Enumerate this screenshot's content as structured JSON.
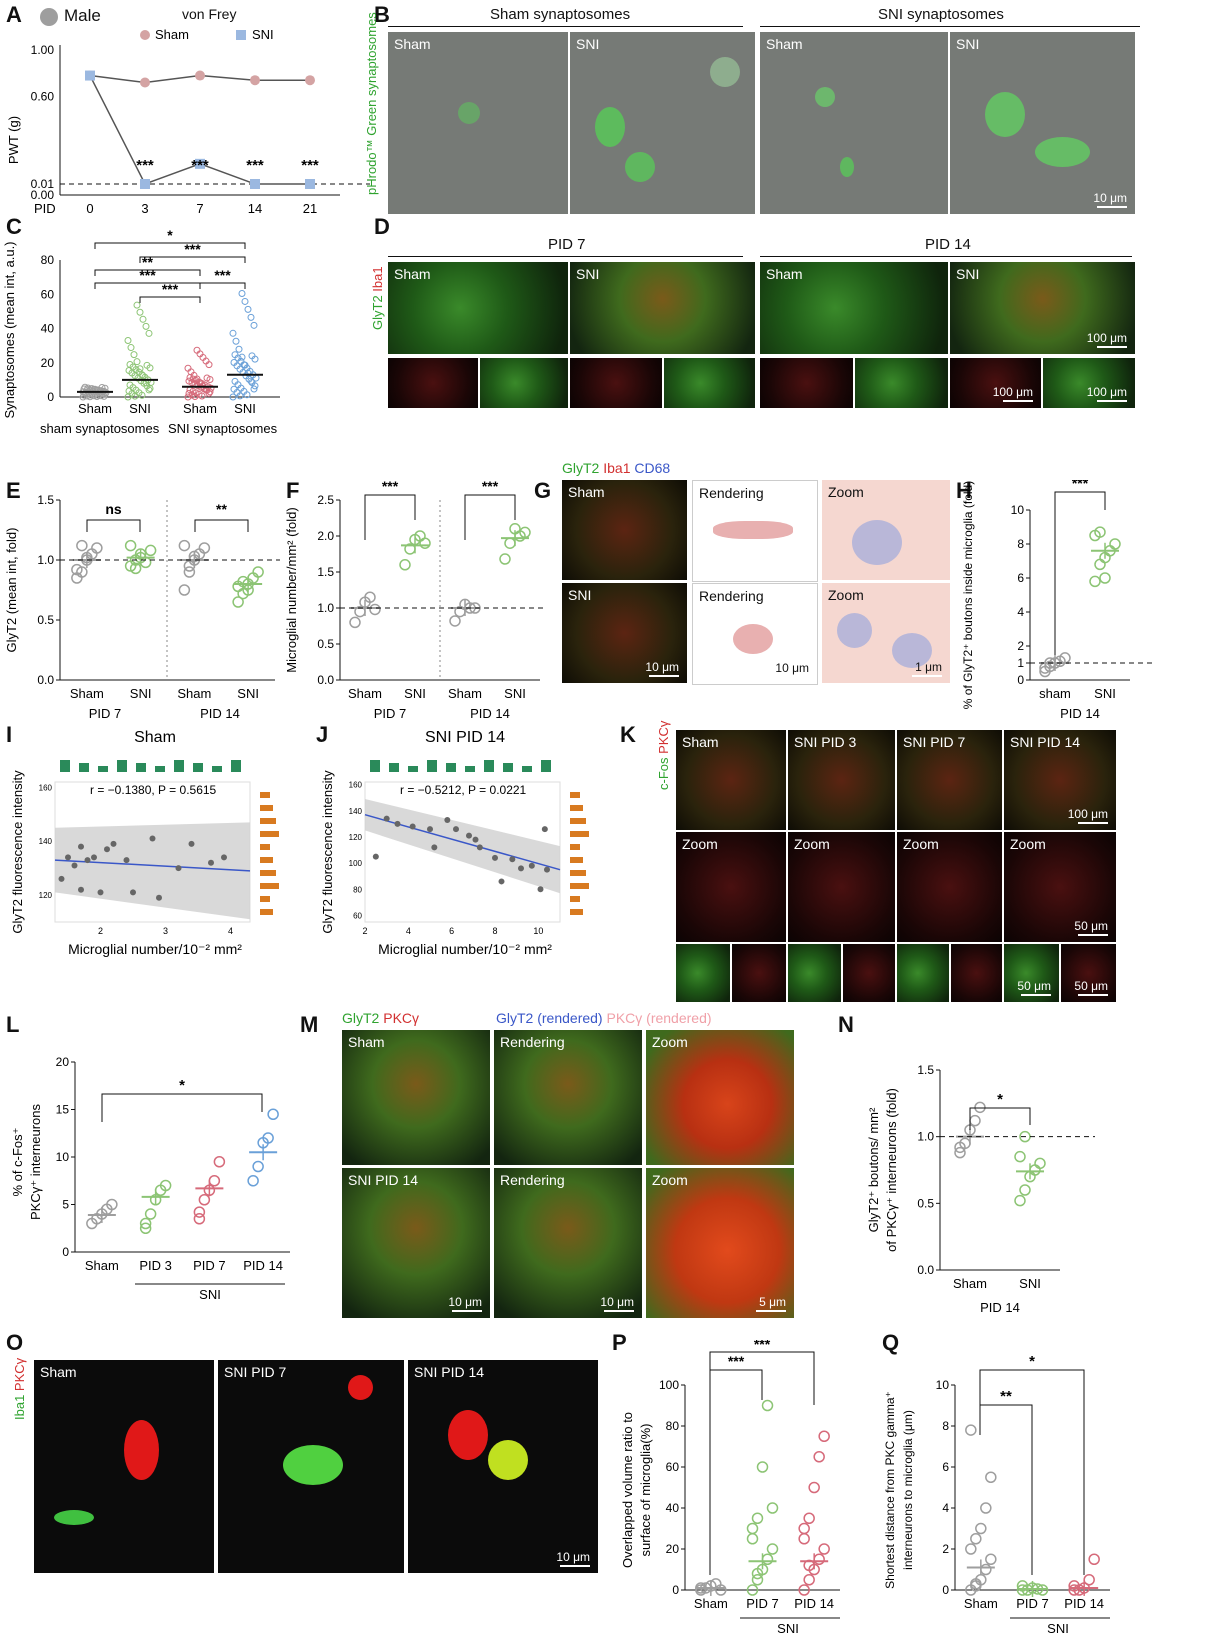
{
  "panels": {
    "A": {
      "label": "A",
      "legend_sex": "Male",
      "title": "von Frey",
      "legend_sham": "Sham",
      "legend_sni": "SNI",
      "ylabel": "PWT (g)",
      "xlabel": "PID",
      "yticks": [
        "1.00",
        "0.60",
        "0.01",
        "0.00"
      ],
      "xticks": [
        "0",
        "3",
        "7",
        "14",
        "21"
      ],
      "sig": [
        "***",
        "***",
        "***",
        "***"
      ]
    },
    "B": {
      "label": "B",
      "group1": "Sham synaptosomes",
      "group2": "SNI synaptosomes",
      "ylabel": "pHrodo™ Green synaptosomes",
      "tiles": [
        "Sham",
        "SNI",
        "Sham",
        "SNI"
      ],
      "scale": "10 μm"
    },
    "C": {
      "label": "C",
      "ylabel": "Synaptosomes (mean int, a.u.)",
      "yticks": [
        "80",
        "60",
        "40",
        "20",
        "0"
      ],
      "xticks": [
        "Sham",
        "SNI",
        "Sham",
        "SNI"
      ],
      "groups": [
        "sham synaptosomes",
        "SNI synaptosomes"
      ],
      "sig": [
        "*",
        "***",
        "**",
        "***",
        "***",
        "***"
      ]
    },
    "D": {
      "label": "D",
      "ylabel_a": "GlyT2",
      "ylabel_b": "Iba1",
      "group1": "PID 7",
      "group2": "PID 14",
      "tiles": [
        "Sham",
        "SNI",
        "Sham",
        "SNI"
      ],
      "scale": "100 μm"
    },
    "E": {
      "label": "E",
      "ylabel": "GlyT2 (mean int, fold)",
      "yticks": [
        "1.5",
        "1.0",
        "0.5",
        "0.0"
      ],
      "xticks": [
        "Sham",
        "SNI",
        "Sham",
        "SNI"
      ],
      "groups": [
        "PID 7",
        "PID 14"
      ],
      "sig": [
        "ns",
        "**"
      ]
    },
    "F": {
      "label": "F",
      "ylabel": "Microglial number/mm² (fold)",
      "yticks": [
        "2.5",
        "2.0",
        "1.5",
        "1.0",
        "0.5",
        "0.0"
      ],
      "xticks": [
        "Sham",
        "SNI",
        "Sham",
        "SNI"
      ],
      "groups": [
        "PID 7",
        "PID 14"
      ],
      "sig": [
        "***",
        "***"
      ]
    },
    "G": {
      "label": "G",
      "title_a": "GlyT2",
      "title_b": "Iba1",
      "title_c": "CD68",
      "row1": [
        "Sham",
        "Rendering",
        "Zoom"
      ],
      "row2": [
        "SNI",
        "Rendering",
        "Zoom"
      ],
      "scales": [
        "10 μm",
        "10 μm",
        "1 μm"
      ]
    },
    "H": {
      "label": "H",
      "ylabel": "% of GlyT2⁺ boutons inside microglia (fold)",
      "yticks": [
        "10",
        "8",
        "6",
        "4",
        "2",
        "1",
        "0"
      ],
      "xticks": [
        "sham",
        "SNI"
      ],
      "group": "PID 14",
      "sig": "***"
    },
    "I": {
      "label": "I",
      "title": "Sham",
      "stat": "r = −0.1380, P = 0.5615",
      "ylabel": "GlyT2 fluorescence intensity",
      "xlabel": "Microglial number/10⁻² mm²",
      "yticks": [
        "160",
        "140",
        "120"
      ],
      "xticks": [
        "2",
        "3",
        "4"
      ]
    },
    "J": {
      "label": "J",
      "title": "SNI PID 14",
      "stat": "r = −0.5212, P = 0.0221",
      "ylabel": "GlyT2 fluorescence intensity",
      "xlabel": "Microglial number/10⁻² mm²",
      "yticks": [
        "160",
        "140",
        "120",
        "100",
        "80",
        "60"
      ],
      "xticks": [
        "2",
        "4",
        "6",
        "8",
        "10"
      ]
    },
    "K": {
      "label": "K",
      "ylabel_a": "c-Fos",
      "ylabel_b": "PKCγ",
      "tiles": [
        "Sham",
        "SNI PID 3",
        "SNI PID 7",
        "SNI PID 14"
      ],
      "zoom": "Zoom",
      "scale1": "100 μm",
      "scale2": "50 μm"
    },
    "L": {
      "label": "L",
      "ylabel_a": "% of c-Fos⁺",
      "ylabel_b": "PKCγ⁺ interneurons",
      "yticks": [
        "20",
        "15",
        "10",
        "5",
        "0"
      ],
      "xticks": [
        "Sham",
        "PID 3",
        "PID 7",
        "PID 14"
      ],
      "group": "SNI",
      "sig": "*"
    },
    "M": {
      "label": "M",
      "title_a": "GlyT2",
      "title_b": "PKCγ",
      "title_c": "GlyT2 (rendered)",
      "title_d": "PKCγ (rendered)",
      "row1": [
        "Sham",
        "Rendering",
        "Zoom"
      ],
      "row2": [
        "SNI PID 14",
        "Rendering",
        "Zoom"
      ],
      "scales": [
        "10 μm",
        "10 μm",
        "5 μm"
      ]
    },
    "N": {
      "label": "N",
      "ylabel_a": "GlyT2⁺ boutons/ mm²",
      "ylabel_b": "of PKCγ⁺ interneurons (fold)",
      "yticks": [
        "1.5",
        "1.0",
        "0.5",
        "0.0"
      ],
      "xticks": [
        "Sham",
        "SNI"
      ],
      "group": "PID 14",
      "sig": "*"
    },
    "O": {
      "label": "O",
      "ylabel_a": "Iba1",
      "ylabel_b": "PKCγ",
      "tiles": [
        "Sham",
        "SNI PID 7",
        "SNI PID 14"
      ],
      "scale": "10 μm"
    },
    "P": {
      "label": "P",
      "ylabel_a": "Overlapped volume ratio to",
      "ylabel_b": "surface of microglia(%)",
      "yticks": [
        "100",
        "80",
        "60",
        "40",
        "20",
        "0"
      ],
      "xticks": [
        "Sham",
        "PID 7",
        "PID 14"
      ],
      "group": "SNI",
      "sig": [
        "***",
        "***"
      ]
    },
    "Q": {
      "label": "Q",
      "ylabel_a": "Shortest distance from PKC gamma⁺",
      "ylabel_b": "interneurons to microglia (μm)",
      "yticks": [
        "10",
        "8",
        "6",
        "4",
        "2",
        "0"
      ],
      "xticks": [
        "Sham",
        "PID 7",
        "PID 14"
      ],
      "group": "SNI",
      "sig": [
        "**",
        "*"
      ]
    }
  },
  "chart_data": [
    {
      "id": "A",
      "type": "line",
      "x": [
        0,
        3,
        7,
        14,
        21
      ],
      "series": [
        {
          "name": "Sham",
          "values": [
            0.78,
            0.72,
            0.78,
            0.74,
            0.74
          ],
          "color": "#d4a3a3"
        },
        {
          "name": "SNI",
          "values": [
            0.78,
            0.01,
            0.02,
            0.01,
            0.01
          ],
          "color": "#9bb8e0"
        }
      ]
    },
    {
      "id": "C",
      "type": "scatter",
      "categories": [
        "Sham",
        "SNI",
        "Sham",
        "SNI"
      ],
      "means": [
        3,
        10,
        6,
        13
      ],
      "ylim": [
        0,
        80
      ],
      "max": [
        5,
        55,
        28,
        62
      ],
      "colors": [
        "#9e9e9e",
        "#8cc474",
        "#d66a7a",
        "#6aa0d8"
      ]
    },
    {
      "id": "E",
      "type": "scatter",
      "categories": [
        "Sham",
        "SNI",
        "Sham",
        "SNI"
      ],
      "means": [
        1.0,
        1.02,
        1.0,
        0.8
      ],
      "ylim": [
        0,
        1.5
      ],
      "points": [
        [
          0.85,
          0.9,
          1.0,
          1.05,
          1.1,
          0.92,
          1.12,
          1.02
        ],
        [
          0.95,
          1.0,
          1.05,
          0.98,
          1.08,
          1.12,
          0.93,
          1.02
        ],
        [
          0.75,
          0.9,
          1.0,
          1.05,
          1.1,
          1.12,
          0.95,
          1.03
        ],
        [
          0.65,
          0.72,
          0.8,
          0.85,
          0.9,
          0.78,
          0.82,
          0.75
        ]
      ]
    },
    {
      "id": "F",
      "type": "scatter",
      "categories": [
        "Sham",
        "SNI",
        "Sham",
        "SNI"
      ],
      "means": [
        1.0,
        1.87,
        1.0,
        1.97
      ],
      "ylim": [
        0,
        2.5
      ],
      "points": [
        [
          0.8,
          0.95,
          1.08,
          1.15,
          0.98
        ],
        [
          1.6,
          1.82,
          1.95,
          2.0,
          1.9
        ],
        [
          0.82,
          0.95,
          1.05,
          1.0,
          1.0
        ],
        [
          1.68,
          1.9,
          2.1,
          2.0,
          2.05
        ]
      ]
    },
    {
      "id": "H",
      "type": "scatter",
      "categories": [
        "sham",
        "SNI"
      ],
      "means": [
        1.0,
        7.6
      ],
      "ylim": [
        0,
        10
      ],
      "points": [
        [
          0.5,
          0.8,
          1.0,
          1.1,
          1.3,
          0.7,
          1.0
        ],
        [
          5.8,
          6.8,
          7.2,
          7.6,
          8.0,
          8.5,
          8.7,
          6.0
        ]
      ]
    },
    {
      "id": "I",
      "type": "scatter",
      "xlim": [
        1.3,
        4.3
      ],
      "ylim": [
        110,
        162
      ],
      "points": [
        [
          1.4,
          126
        ],
        [
          1.5,
          134
        ],
        [
          1.6,
          131
        ],
        [
          1.7,
          122
        ],
        [
          1.8,
          133
        ],
        [
          1.9,
          134
        ],
        [
          2.0,
          121
        ],
        [
          2.1,
          137
        ],
        [
          2.2,
          139
        ],
        [
          2.4,
          133
        ],
        [
          2.5,
          121
        ],
        [
          2.8,
          141
        ],
        [
          3.2,
          130
        ],
        [
          3.4,
          139
        ],
        [
          3.7,
          132
        ],
        [
          1.7,
          138
        ],
        [
          2.9,
          119
        ],
        [
          3.9,
          134
        ]
      ],
      "fit": [
        [
          1.3,
          133
        ],
        [
          4.3,
          129
        ]
      ]
    },
    {
      "id": "J",
      "type": "scatter",
      "xlim": [
        2,
        11
      ],
      "ylim": [
        55,
        162
      ],
      "points": [
        [
          2.5,
          105
        ],
        [
          3.0,
          134
        ],
        [
          3.5,
          130
        ],
        [
          4.2,
          128
        ],
        [
          5.0,
          126
        ],
        [
          5.2,
          112
        ],
        [
          5.8,
          133
        ],
        [
          6.2,
          126
        ],
        [
          6.8,
          121
        ],
        [
          7.1,
          118
        ],
        [
          7.3,
          112
        ],
        [
          8.0,
          104
        ],
        [
          8.3,
          86
        ],
        [
          8.8,
          103
        ],
        [
          9.2,
          96
        ],
        [
          9.7,
          98
        ],
        [
          10.1,
          80
        ],
        [
          10.4,
          95
        ],
        [
          10.3,
          126
        ]
      ],
      "fit": [
        [
          2,
          137
        ],
        [
          11,
          95
        ]
      ]
    },
    {
      "id": "L",
      "type": "scatter",
      "categories": [
        "Sham",
        "PID 3",
        "PID 7",
        "PID 14"
      ],
      "means": [
        3.9,
        5.8,
        6.7,
        10.5
      ],
      "ylim": [
        0,
        20
      ],
      "points": [
        [
          3.0,
          3.5,
          4.0,
          4.5,
          5.0
        ],
        [
          2.5,
          4.0,
          5.5,
          6.5,
          7.0,
          3.0
        ],
        [
          3.5,
          5.5,
          6.5,
          7.5,
          9.5,
          4.2
        ],
        [
          7.5,
          9.0,
          11.5,
          12.0,
          14.5
        ]
      ]
    },
    {
      "id": "N",
      "type": "scatter",
      "categories": [
        "Sham",
        "SNI"
      ],
      "means": [
        1.0,
        0.74
      ],
      "ylim": [
        0,
        1.5
      ],
      "points": [
        [
          0.88,
          0.95,
          1.05,
          1.12,
          1.22,
          0.92
        ],
        [
          0.52,
          0.6,
          0.7,
          0.75,
          0.8,
          0.85,
          1.0
        ]
      ]
    },
    {
      "id": "P",
      "type": "scatter",
      "categories": [
        "Sham",
        "PID 7",
        "PID 14"
      ],
      "means": [
        1,
        14,
        14
      ],
      "ylim": [
        0,
        100
      ],
      "points": [
        [
          0,
          1,
          2,
          3,
          0,
          1
        ],
        [
          0,
          5,
          10,
          15,
          20,
          25,
          35,
          60,
          90,
          40,
          30,
          8
        ],
        [
          0,
          5,
          10,
          15,
          20,
          25,
          35,
          50,
          65,
          75,
          30,
          12
        ]
      ]
    },
    {
      "id": "Q",
      "type": "scatter",
      "categories": [
        "Sham",
        "PID 7",
        "PID 14"
      ],
      "means": [
        1.1,
        0.05,
        0.1
      ],
      "ylim": [
        0,
        10
      ],
      "points": [
        [
          0,
          0.2,
          0.5,
          1.0,
          1.5,
          2.0,
          2.5,
          3.0,
          4.0,
          5.5,
          7.8,
          0.3
        ],
        [
          0,
          0,
          0.1,
          0.05,
          0,
          0.2
        ],
        [
          0,
          0,
          0.1,
          0.5,
          1.5,
          0.2
        ]
      ]
    }
  ]
}
